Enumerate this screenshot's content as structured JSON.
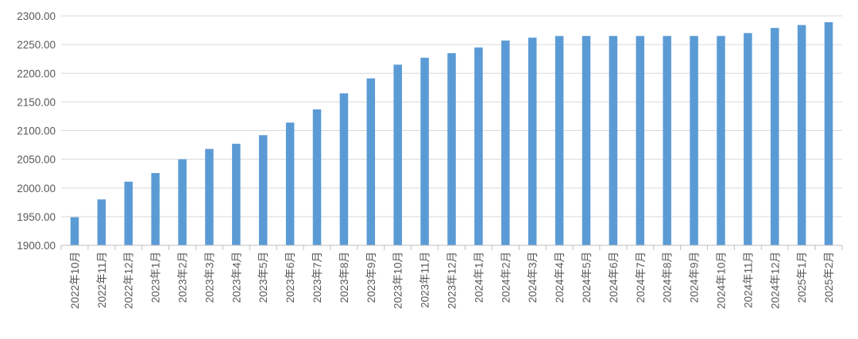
{
  "chart_data": {
    "type": "bar",
    "title": "",
    "xlabel": "",
    "ylabel": "",
    "ylim": [
      1900,
      2300
    ],
    "ytick_step": 50,
    "ytick_decimals": 2,
    "grid": true,
    "legend": "none",
    "bar_color": "#5b9bd5",
    "categories": [
      "2022年10月",
      "2022年11月",
      "2022年12月",
      "2023年1月",
      "2023年2月",
      "2023年3月",
      "2023年4月",
      "2023年5月",
      "2023年6月",
      "2023年7月",
      "2023年8月",
      "2023年9月",
      "2023年10月",
      "2023年11月",
      "2023年12月",
      "2024年1月",
      "2024年2月",
      "2024年3月",
      "2024年4月",
      "2024年5月",
      "2024年6月",
      "2024年7月",
      "2024年8月",
      "2024年9月",
      "2024年10月",
      "2024年11月",
      "2024年12月",
      "2025年1月",
      "2025年2月"
    ],
    "values": [
      1949,
      1980,
      2011,
      2026,
      2050,
      2068,
      2077,
      2092,
      2114,
      2137,
      2165,
      2191,
      2215,
      2227,
      2235,
      2245,
      2257,
      2262,
      2265,
      2265,
      2265,
      2265,
      2265,
      2265,
      2265,
      2270,
      2279,
      2284,
      2289
    ]
  }
}
